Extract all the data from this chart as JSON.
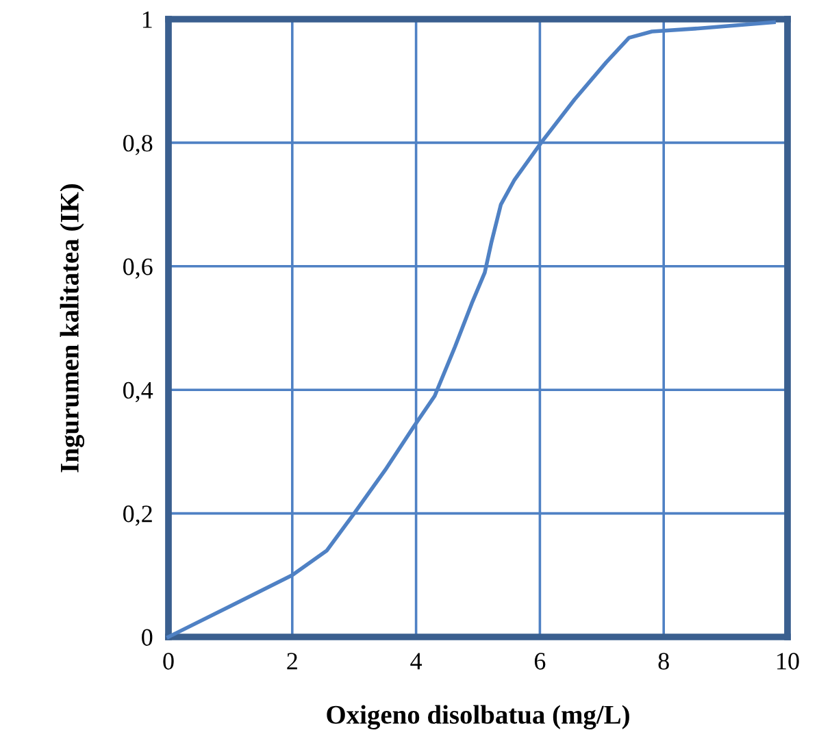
{
  "chart_data": {
    "type": "line",
    "xlabel": "Oxigeno disolbatua (mg/L)",
    "ylabel": "Ingurumen kalitatea (IK)",
    "x": [
      0,
      1,
      2,
      2.56,
      3,
      3.5,
      3.96,
      4.3,
      4.63,
      4.9,
      5.11,
      5.22,
      5.37,
      5.59,
      6.02,
      6.56,
      7.07,
      7.44,
      7.81,
      8.56,
      9.78
    ],
    "series": [
      {
        "color": "#4f81c4",
        "values": [
          0.0,
          0.05,
          0.1,
          0.14,
          0.2,
          0.27,
          0.34,
          0.39,
          0.47,
          0.54,
          0.59,
          0.64,
          0.7,
          0.74,
          0.8,
          0.87,
          0.93,
          0.97,
          0.98,
          0.985,
          0.995
        ]
      }
    ],
    "xlim": [
      0,
      10
    ],
    "ylim": [
      0,
      1
    ],
    "xticks": [
      0,
      2,
      4,
      6,
      8,
      10
    ],
    "yticks": [
      0,
      {
        "value": 0.2,
        "label": "0,2"
      },
      {
        "value": 0.4,
        "label": "0,4"
      },
      {
        "value": 0.6,
        "label": "0,6"
      },
      {
        "value": 0.8,
        "label": "0,8"
      },
      1
    ],
    "grid": true,
    "legend": false,
    "marker": "none",
    "line_style": "solid"
  }
}
